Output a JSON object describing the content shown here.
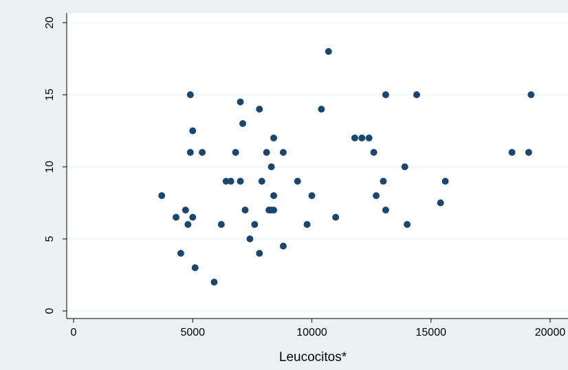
{
  "chart_data": {
    "type": "scatter",
    "title": "",
    "xlabel": "Leucocitos*",
    "ylabel": "",
    "xlim": [
      0,
      20000
    ],
    "ylim": [
      0,
      20
    ],
    "xticks": [
      "0",
      "5000",
      "10000",
      "15000",
      "20000"
    ],
    "yticks": [
      "0",
      "5",
      "10",
      "15",
      "20"
    ],
    "grid": "horizontal",
    "legend": "none",
    "colors": {
      "outer_background": "#eaf2f3",
      "plot_background": "#ffffff",
      "grid": "#eaf2f3",
      "marker": "#1a476f",
      "axis": "#000000"
    },
    "series": [
      {
        "points": [
          [
            3700,
            8
          ],
          [
            4300,
            6.5
          ],
          [
            4500,
            4
          ],
          [
            4700,
            7
          ],
          [
            4800,
            6
          ],
          [
            4900,
            15
          ],
          [
            4900,
            11
          ],
          [
            5000,
            12.5
          ],
          [
            5000,
            6.5
          ],
          [
            5100,
            3
          ],
          [
            5400,
            11
          ],
          [
            5900,
            2
          ],
          [
            6200,
            6
          ],
          [
            6400,
            9
          ],
          [
            6600,
            9
          ],
          [
            6800,
            11
          ],
          [
            7000,
            14.5
          ],
          [
            7000,
            9
          ],
          [
            7100,
            13
          ],
          [
            7200,
            7
          ],
          [
            7400,
            5
          ],
          [
            7600,
            6
          ],
          [
            7800,
            14
          ],
          [
            7800,
            4
          ],
          [
            7900,
            9
          ],
          [
            8100,
            11
          ],
          [
            8200,
            7
          ],
          [
            8300,
            10
          ],
          [
            8400,
            12
          ],
          [
            8400,
            8
          ],
          [
            8400,
            7
          ],
          [
            8300,
            7
          ],
          [
            8800,
            11
          ],
          [
            8800,
            4.5
          ],
          [
            9400,
            9
          ],
          [
            9800,
            6
          ],
          [
            10000,
            8
          ],
          [
            10400,
            14
          ],
          [
            10700,
            18
          ],
          [
            11000,
            6.5
          ],
          [
            11800,
            12
          ],
          [
            12100,
            12
          ],
          [
            12400,
            12
          ],
          [
            12600,
            11
          ],
          [
            12700,
            8
          ],
          [
            13000,
            9
          ],
          [
            13100,
            15
          ],
          [
            13100,
            7
          ],
          [
            13900,
            10
          ],
          [
            14000,
            6
          ],
          [
            14400,
            15
          ],
          [
            15400,
            7.5
          ],
          [
            15600,
            9
          ],
          [
            18400,
            11
          ],
          [
            19100,
            11
          ],
          [
            19200,
            15
          ]
        ]
      }
    ]
  }
}
